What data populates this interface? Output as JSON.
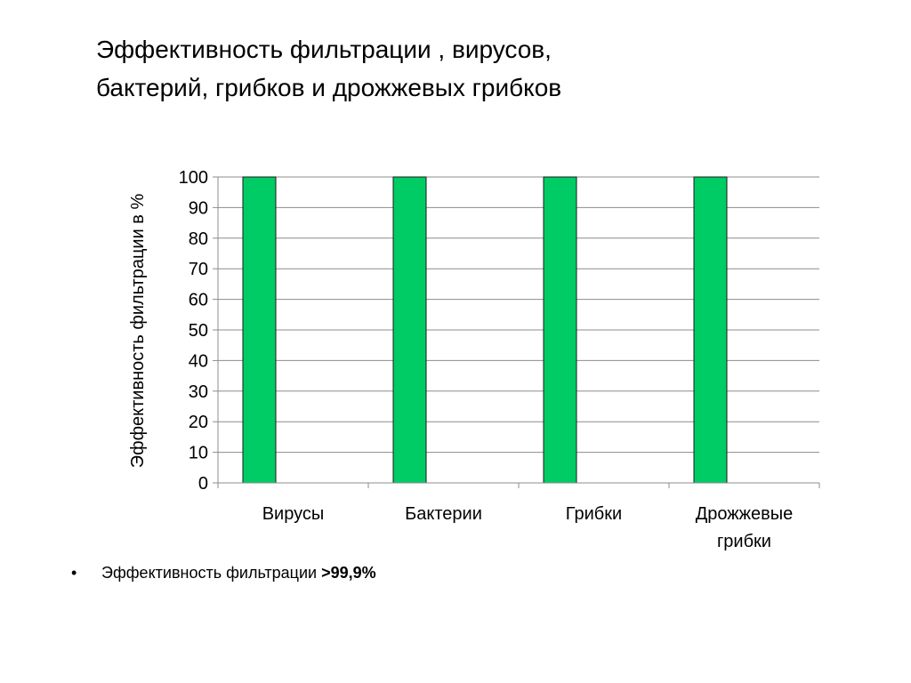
{
  "slide": {
    "title": "Эффективность фильтрации , вирусов, бактерий, грибков и дрожжевых грибков",
    "bullet_text": "Эффективность фильтрации ",
    "bullet_value": ">99,9%"
  },
  "chart_data": {
    "type": "bar",
    "title": "",
    "xlabel": "",
    "ylabel": "Эффективность фильтрации в %",
    "categories": [
      [
        "Вирусы"
      ],
      [
        "Бактерии"
      ],
      [
        "Грибки"
      ],
      [
        "Дрожжевые",
        "грибки"
      ]
    ],
    "values": [
      100,
      100,
      100,
      100
    ],
    "ylim": [
      0,
      100
    ],
    "yticks": [
      0,
      10,
      20,
      30,
      40,
      50,
      60,
      70,
      80,
      90,
      100
    ],
    "grid": true,
    "bar_color": "#00cc66",
    "legend": "none"
  }
}
